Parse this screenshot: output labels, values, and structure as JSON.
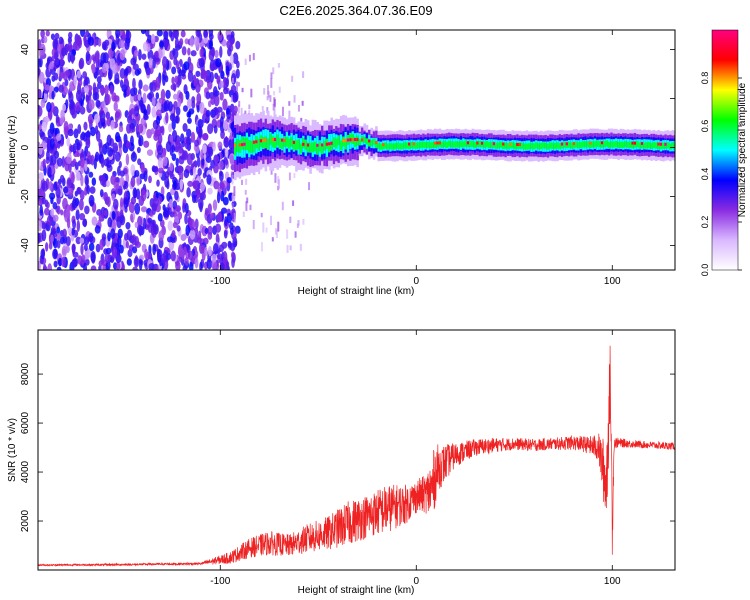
{
  "title": "C2E6.2025.364.07.36.E09",
  "chart_data": [
    {
      "type": "heatmap",
      "title": "C2E6.2025.364.07.36.E09",
      "xlabel": "Height of straight line (km)",
      "ylabel": "Frequency (Hz)",
      "xlim": [
        -193,
        132
      ],
      "ylim": [
        -50,
        48
      ],
      "x_ticks": [
        -100,
        0,
        100
      ],
      "y_ticks": [
        -40,
        -20,
        0,
        20,
        40
      ],
      "colorbar": {
        "label": "Normalized spectral amplitude",
        "range": [
          0,
          1
        ],
        "ticks": [
          "0.0",
          "0.2",
          "0.4",
          "0.6",
          "0.8"
        ],
        "stops": [
          "#ffffff",
          "#d9b8ff",
          "#8a2be2",
          "#0000ff",
          "#00ffff",
          "#00ff00",
          "#ffff00",
          "#ff0000",
          "#ff0080"
        ]
      },
      "description_regions": [
        {
          "x_from": -193,
          "x_to": -93,
          "pattern": "scattered noise across all frequencies"
        },
        {
          "x_from": -93,
          "x_to": 132,
          "pattern": "narrow band centered near 0 Hz, widening toward -93 km"
        }
      ]
    },
    {
      "type": "line",
      "xlabel": "Height of straight line (km)",
      "ylabel": "SNR (10 * v/v)",
      "xlim": [
        -193,
        132
      ],
      "ylim": [
        0,
        9800
      ],
      "x_ticks": [
        -100,
        0,
        100
      ],
      "y_ticks": [
        2000,
        4000,
        6000,
        8000
      ],
      "series": [
        {
          "name": "SNR",
          "color": "#ee2222",
          "x": [
            -193,
            -150,
            -110,
            -95,
            -85,
            -75,
            -65,
            -55,
            -45,
            -35,
            -25,
            -15,
            -5,
            0,
            5,
            8,
            10,
            12,
            20,
            30,
            40,
            50,
            60,
            70,
            80,
            88,
            93,
            97,
            99,
            100,
            101,
            103,
            110,
            120,
            132
          ],
          "y": [
            200,
            220,
            260,
            500,
            900,
            1100,
            1000,
            1300,
            1500,
            1900,
            2200,
            2500,
            2700,
            3000,
            3100,
            3300,
            4000,
            4200,
            4700,
            5000,
            5100,
            5150,
            5100,
            5150,
            5200,
            5100,
            5000,
            3500,
            8000,
            2000,
            5200,
            5200,
            5150,
            5100,
            5050
          ],
          "noise_amplitude": [
            30,
            40,
            50,
            250,
            400,
            500,
            450,
            600,
            700,
            900,
            900,
            1000,
            800,
            700,
            800,
            1400,
            1200,
            900,
            500,
            350,
            300,
            250,
            250,
            250,
            300,
            350,
            600,
            1800,
            1500,
            1500,
            250,
            200,
            150,
            150,
            150
          ]
        }
      ]
    }
  ]
}
